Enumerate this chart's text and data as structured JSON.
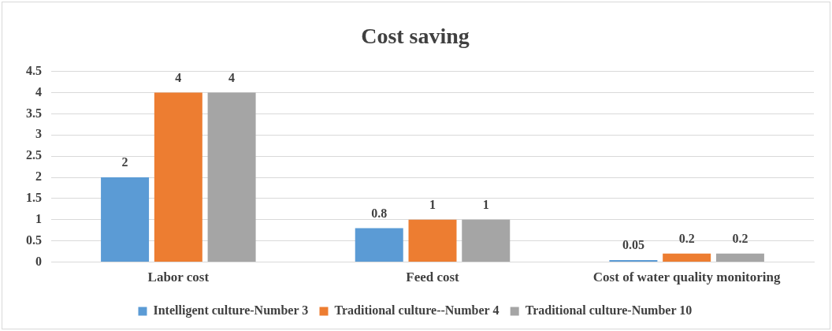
{
  "chart_data": {
    "type": "bar",
    "title": "Cost saving",
    "categories": [
      "Labor cost",
      "Feed cost",
      "Cost of water quality monitoring"
    ],
    "series": [
      {
        "name": "Intelligent culture-Number 3",
        "color": "#5b9bd5",
        "values": [
          2,
          0.8,
          0.05
        ]
      },
      {
        "name": "Traditional culture--Number 4",
        "color": "#ed7d31",
        "values": [
          4,
          1,
          0.2
        ]
      },
      {
        "name": "Traditional culture-Number 10",
        "color": "#a5a5a5",
        "values": [
          4,
          1,
          0.2
        ]
      }
    ],
    "ylim": [
      0,
      4.5
    ],
    "yticks": [
      0,
      0.5,
      1,
      1.5,
      2,
      2.5,
      3,
      3.5,
      4,
      4.5
    ],
    "grid": "y",
    "legend": "bottom",
    "data_labels": true
  }
}
